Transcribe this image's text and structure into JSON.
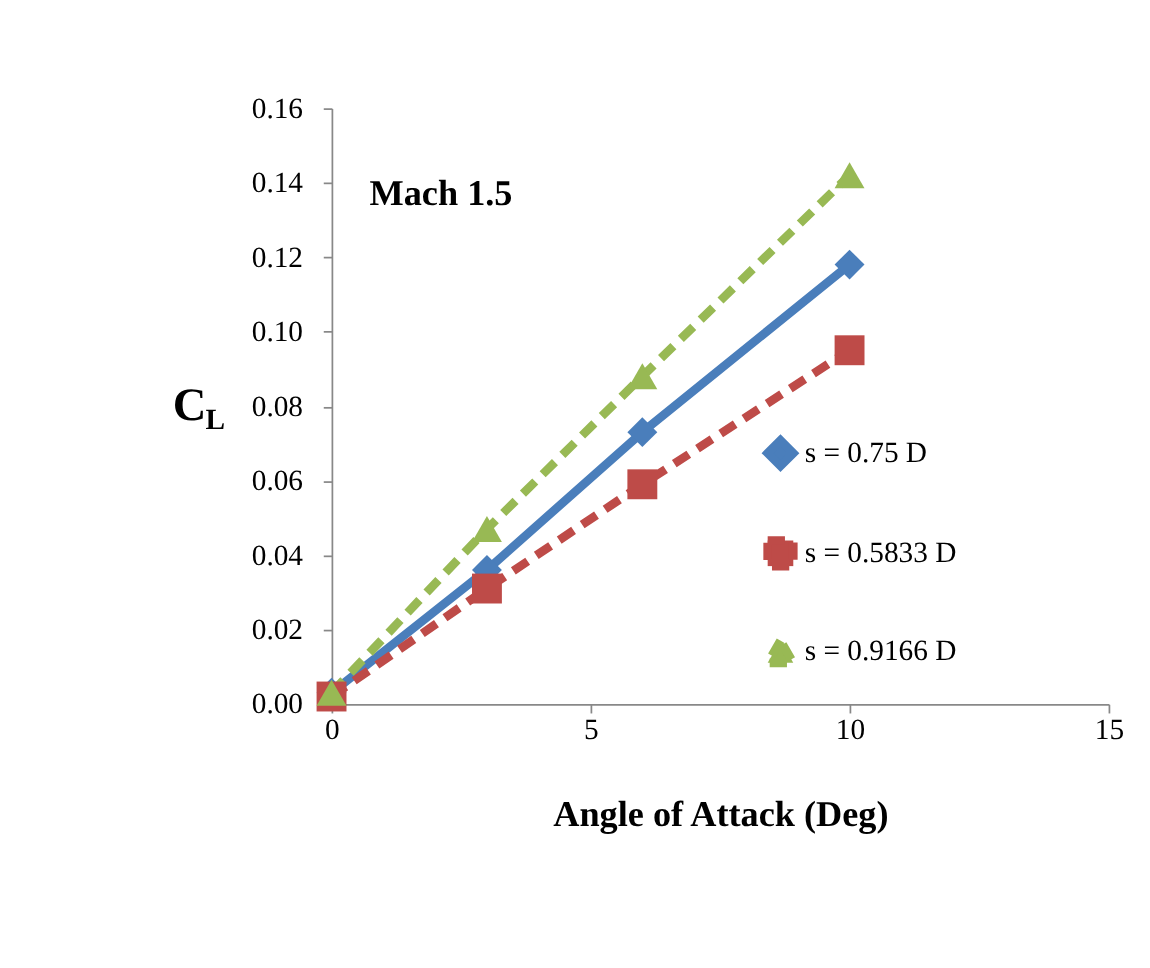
{
  "chart_data": {
    "type": "line",
    "xlabel": "Angle of Attack (Deg)",
    "ylabel": "C$_{L}$",
    "annotations": [
      "Mach 1.5"
    ],
    "x": [
      0,
      3,
      6,
      10
    ],
    "series": [
      {
        "name": "s = 0.75 D",
        "color": "#4a7ebb",
        "values": [
          0.003,
          0.036,
          0.073,
          0.118
        ],
        "marker": "diamond",
        "line_style": "solid"
      },
      {
        "name": "s = 0.5833 D",
        "color": "#be4b48",
        "values": [
          0.002,
          0.031,
          0.059,
          0.095
        ],
        "marker": "square",
        "line_style": "dashed"
      },
      {
        "name": "s = 0.9166 D",
        "color": "#98b954",
        "values": [
          0.003,
          0.047,
          0.088,
          0.142
        ],
        "marker": "triangle",
        "line_style": "dashed"
      }
    ],
    "xlim": [
      0,
      15
    ],
    "xticks": [
      0,
      5,
      10,
      15
    ],
    "ylim": [
      0,
      0.16
    ],
    "yticks": [
      {
        "value": 0,
        "label": "0.00"
      },
      {
        "value": 0.02,
        "label": "0.02"
      },
      {
        "value": 0.04,
        "label": "0.04"
      },
      {
        "value": 0.06,
        "label": "0.06"
      },
      {
        "value": 0.08,
        "label": "0.08"
      },
      {
        "value": 0.1,
        "label": "0.10"
      },
      {
        "value": 0.12,
        "label": "0.12"
      },
      {
        "value": 0.14,
        "label": "0.14"
      },
      {
        "value": 0.16,
        "label": "0.16"
      }
    ],
    "legend": "right",
    "grid": false
  }
}
